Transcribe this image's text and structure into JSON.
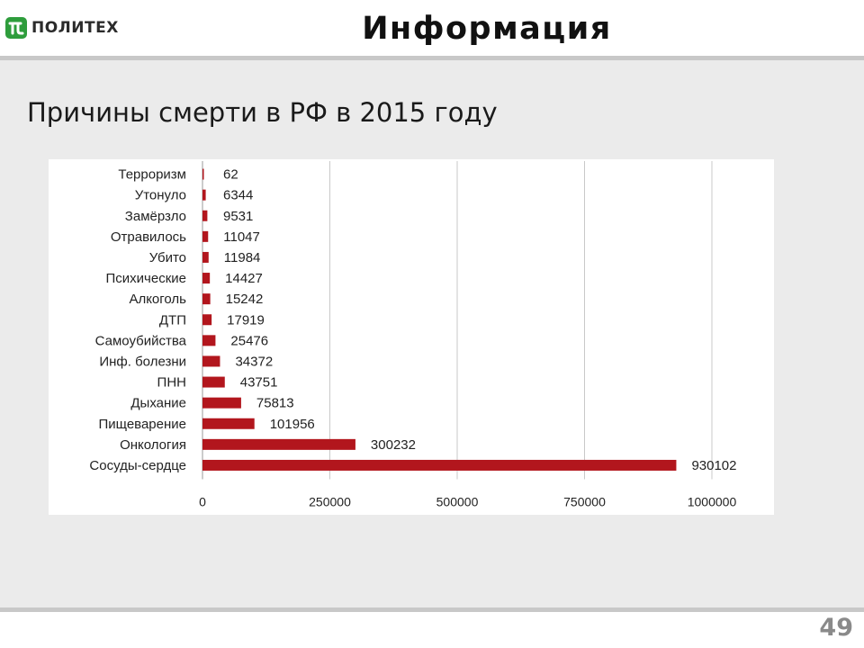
{
  "header": {
    "logo_text": "ПОЛИТЕХ",
    "logo_icon": "politech-logo-icon",
    "title": "Информация"
  },
  "subtitle": "Причины смерти в РФ в 2015 году",
  "page_number": "49",
  "colors": {
    "bar": "#b2161d",
    "header_rule": "#c8c8c8",
    "content_bg": "#ebebeb",
    "logo": "#2e9d3c"
  },
  "chart_data": {
    "type": "bar",
    "orientation": "horizontal",
    "categories": [
      "Терроризм",
      "Утонуло",
      "Замёрзло",
      "Отравилось",
      "Убито",
      "Психические",
      "Алкоголь",
      "ДТП",
      "Самоубийства",
      "Инф. болезни",
      "ПНН",
      "Дыхание",
      "Пищеварение",
      "Онкология",
      "Сосуды-сердце"
    ],
    "values": [
      62,
      6344,
      9531,
      11047,
      11984,
      14427,
      15242,
      17919,
      25476,
      34372,
      43751,
      75813,
      101956,
      300232,
      930102
    ],
    "value_labels": [
      "62",
      "6344",
      "9531",
      "11047",
      "11984",
      "14427",
      "15242",
      "17919",
      "25476",
      "34372",
      "43751",
      "75813",
      "101956",
      "300232",
      "930102"
    ],
    "xlim": [
      0,
      1000000
    ],
    "xticks": [
      0,
      250000,
      500000,
      750000,
      1000000
    ],
    "xtick_labels": [
      "0",
      "250000",
      "500000",
      "750000",
      "1000000"
    ],
    "grid": true,
    "title": "",
    "xlabel": "",
    "ylabel": ""
  }
}
